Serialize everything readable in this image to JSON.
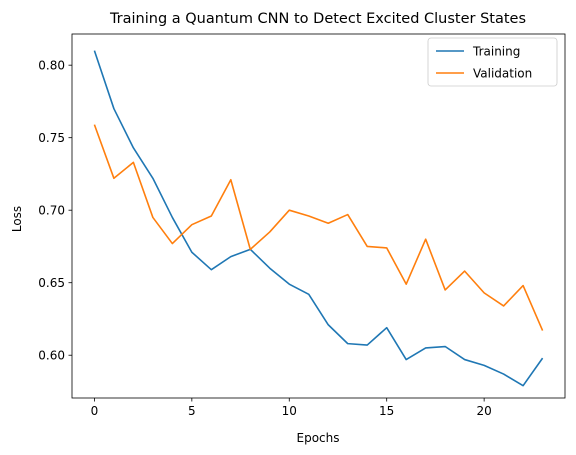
{
  "chart_data": {
    "type": "line",
    "title": "Training a Quantum CNN to Detect Excited Cluster States",
    "xlabel": "Epochs",
    "ylabel": "Loss",
    "xlim": [
      -1.15,
      24.15
    ],
    "ylim": [
      0.5705,
      0.8215
    ],
    "xticks": [
      0,
      5,
      10,
      15,
      20
    ],
    "yticks": [
      0.6,
      0.65,
      0.7,
      0.75,
      0.8
    ],
    "ytick_labels": [
      "0.60",
      "0.65",
      "0.70",
      "0.75",
      "0.80"
    ],
    "legend_position": "top-right",
    "grid": false,
    "x": [
      0,
      1,
      2,
      3,
      4,
      5,
      6,
      7,
      8,
      9,
      10,
      11,
      12,
      13,
      14,
      15,
      16,
      17,
      18,
      19,
      20,
      21,
      22,
      23
    ],
    "series": [
      {
        "name": "Training",
        "color": "#1f77b4",
        "values": [
          0.81,
          0.77,
          0.743,
          0.722,
          0.695,
          0.671,
          0.659,
          0.668,
          0.673,
          0.66,
          0.649,
          0.642,
          0.621,
          0.608,
          0.607,
          0.619,
          0.597,
          0.605,
          0.606,
          0.597,
          0.593,
          0.587,
          0.579,
          0.598
        ]
      },
      {
        "name": "Validation",
        "color": "#ff7f0e",
        "values": [
          0.759,
          0.722,
          0.733,
          0.695,
          0.677,
          0.69,
          0.696,
          0.721,
          0.673,
          0.685,
          0.7,
          0.696,
          0.691,
          0.697,
          0.675,
          0.674,
          0.649,
          0.68,
          0.645,
          0.658,
          0.643,
          0.634,
          0.648,
          0.617
        ]
      }
    ]
  }
}
